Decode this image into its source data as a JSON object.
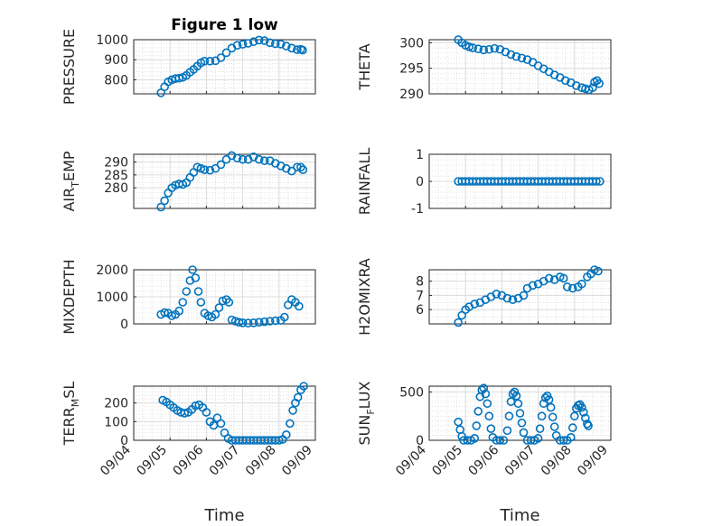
{
  "chart_data": [
    {
      "type": "scatter",
      "title": "Figure 1 low",
      "ylabel": "PRESSURE",
      "xlim": [
        0,
        5
      ],
      "ylim": [
        730,
        1000
      ],
      "yticks": [
        800,
        900,
        1000
      ],
      "xtick_labels": [],
      "grid": true,
      "marker": "open-circle",
      "color": "#0072BD",
      "points": [
        [
          0.75,
          735
        ],
        [
          0.85,
          765
        ],
        [
          0.95,
          790
        ],
        [
          1.05,
          800
        ],
        [
          1.15,
          806
        ],
        [
          1.25,
          808
        ],
        [
          1.35,
          812
        ],
        [
          1.45,
          822
        ],
        [
          1.55,
          838
        ],
        [
          1.65,
          852
        ],
        [
          1.75,
          868
        ],
        [
          1.85,
          885
        ],
        [
          1.95,
          893
        ],
        [
          2.1,
          893
        ],
        [
          2.25,
          895
        ],
        [
          2.4,
          910
        ],
        [
          2.55,
          935
        ],
        [
          2.7,
          958
        ],
        [
          2.85,
          972
        ],
        [
          3.0,
          977
        ],
        [
          3.15,
          982
        ],
        [
          3.3,
          990
        ],
        [
          3.45,
          998
        ],
        [
          3.6,
          995
        ],
        [
          3.75,
          985
        ],
        [
          3.9,
          980
        ],
        [
          4.05,
          978
        ],
        [
          4.2,
          968
        ],
        [
          4.35,
          958
        ],
        [
          4.5,
          950
        ],
        [
          4.6,
          952
        ],
        [
          4.65,
          948
        ]
      ]
    },
    {
      "type": "scatter",
      "title": "",
      "ylabel": "THETA",
      "xlim": [
        0,
        5
      ],
      "ylim": [
        290,
        300.6
      ],
      "yticks": [
        290,
        295,
        300
      ],
      "xtick_labels": [],
      "grid": true,
      "marker": "open-circle",
      "color": "#0072BD",
      "points": [
        [
          0.8,
          300.6
        ],
        [
          0.9,
          300.0
        ],
        [
          1.0,
          299.5
        ],
        [
          1.1,
          299.2
        ],
        [
          1.2,
          299.0
        ],
        [
          1.35,
          298.8
        ],
        [
          1.5,
          298.6
        ],
        [
          1.65,
          298.7
        ],
        [
          1.8,
          298.9
        ],
        [
          1.95,
          298.7
        ],
        [
          2.1,
          298.2
        ],
        [
          2.25,
          297.7
        ],
        [
          2.4,
          297.3
        ],
        [
          2.55,
          297.0
        ],
        [
          2.7,
          296.7
        ],
        [
          2.85,
          296.2
        ],
        [
          3.0,
          295.5
        ],
        [
          3.15,
          294.9
        ],
        [
          3.3,
          294.3
        ],
        [
          3.45,
          293.7
        ],
        [
          3.6,
          293.2
        ],
        [
          3.75,
          292.6
        ],
        [
          3.9,
          292.2
        ],
        [
          4.05,
          291.6
        ],
        [
          4.2,
          291.2
        ],
        [
          4.3,
          291.0
        ],
        [
          4.4,
          290.8
        ],
        [
          4.5,
          291.2
        ],
        [
          4.55,
          292.3
        ],
        [
          4.62,
          292.6
        ],
        [
          4.68,
          292.0
        ]
      ]
    },
    {
      "type": "scatter",
      "title": "",
      "ylabel": "AIR",
      "ylabel_sub": "T",
      "ylabel_tail": "EMP",
      "xlim": [
        0,
        5
      ],
      "ylim": [
        272,
        293
      ],
      "yticks": [
        280,
        285,
        290
      ],
      "xtick_labels": [],
      "grid": true,
      "marker": "open-circle",
      "color": "#0072BD",
      "points": [
        [
          0.75,
          272.5
        ],
        [
          0.85,
          275
        ],
        [
          0.95,
          278
        ],
        [
          1.05,
          280
        ],
        [
          1.15,
          281
        ],
        [
          1.25,
          281.5
        ],
        [
          1.35,
          281.3
        ],
        [
          1.45,
          282
        ],
        [
          1.55,
          284
        ],
        [
          1.65,
          286
        ],
        [
          1.75,
          288
        ],
        [
          1.85,
          287.5
        ],
        [
          1.95,
          287
        ],
        [
          2.1,
          286.8
        ],
        [
          2.25,
          287.5
        ],
        [
          2.4,
          289
        ],
        [
          2.55,
          291
        ],
        [
          2.7,
          292.5
        ],
        [
          2.85,
          291.5
        ],
        [
          3.0,
          291
        ],
        [
          3.15,
          291
        ],
        [
          3.3,
          292
        ],
        [
          3.45,
          291
        ],
        [
          3.6,
          290.5
        ],
        [
          3.75,
          290.5
        ],
        [
          3.9,
          289.5
        ],
        [
          4.05,
          288.5
        ],
        [
          4.2,
          287.5
        ],
        [
          4.35,
          286.5
        ],
        [
          4.5,
          288
        ],
        [
          4.6,
          288
        ],
        [
          4.66,
          287
        ]
      ]
    },
    {
      "type": "scatter",
      "title": "",
      "ylabel": "RAINFALL",
      "xlim": [
        0,
        5
      ],
      "ylim": [
        -1,
        1
      ],
      "yticks": [
        -1,
        0,
        1
      ],
      "xtick_labels": [],
      "grid": true,
      "marker": "open-circle",
      "color": "#0072BD",
      "points": [
        [
          0.8,
          0
        ],
        [
          0.9,
          0
        ],
        [
          1.0,
          0
        ],
        [
          1.1,
          0
        ],
        [
          1.2,
          0
        ],
        [
          1.3,
          0
        ],
        [
          1.4,
          0
        ],
        [
          1.5,
          0
        ],
        [
          1.6,
          0
        ],
        [
          1.7,
          0
        ],
        [
          1.8,
          0
        ],
        [
          1.9,
          0
        ],
        [
          2.0,
          0
        ],
        [
          2.1,
          0
        ],
        [
          2.2,
          0
        ],
        [
          2.3,
          0
        ],
        [
          2.4,
          0
        ],
        [
          2.5,
          0
        ],
        [
          2.6,
          0
        ],
        [
          2.7,
          0
        ],
        [
          2.8,
          0
        ],
        [
          2.9,
          0
        ],
        [
          3.0,
          0
        ],
        [
          3.1,
          0
        ],
        [
          3.2,
          0
        ],
        [
          3.3,
          0
        ],
        [
          3.4,
          0
        ],
        [
          3.5,
          0
        ],
        [
          3.6,
          0
        ],
        [
          3.7,
          0
        ],
        [
          3.8,
          0
        ],
        [
          3.9,
          0
        ],
        [
          4.0,
          0
        ],
        [
          4.1,
          0
        ],
        [
          4.2,
          0
        ],
        [
          4.3,
          0
        ],
        [
          4.4,
          0
        ],
        [
          4.5,
          0
        ],
        [
          4.6,
          0
        ],
        [
          4.7,
          0
        ]
      ]
    },
    {
      "type": "scatter",
      "title": "",
      "ylabel": "MIXDEPTH",
      "xlim": [
        0,
        5
      ],
      "ylim": [
        0,
        2000
      ],
      "yticks": [
        0,
        1000,
        2000
      ],
      "xtick_labels": [],
      "grid": true,
      "marker": "open-circle",
      "color": "#0072BD",
      "points": [
        [
          0.75,
          350
        ],
        [
          0.85,
          420
        ],
        [
          0.95,
          400
        ],
        [
          1.05,
          300
        ],
        [
          1.15,
          350
        ],
        [
          1.25,
          480
        ],
        [
          1.35,
          800
        ],
        [
          1.45,
          1200
        ],
        [
          1.55,
          1600
        ],
        [
          1.62,
          2000
        ],
        [
          1.7,
          1700
        ],
        [
          1.78,
          1200
        ],
        [
          1.85,
          800
        ],
        [
          1.95,
          400
        ],
        [
          2.05,
          300
        ],
        [
          2.15,
          250
        ],
        [
          2.25,
          350
        ],
        [
          2.35,
          600
        ],
        [
          2.45,
          850
        ],
        [
          2.55,
          900
        ],
        [
          2.62,
          800
        ],
        [
          2.7,
          150
        ],
        [
          2.8,
          100
        ],
        [
          2.9,
          60
        ],
        [
          3.0,
          40
        ],
        [
          3.15,
          30
        ],
        [
          3.3,
          40
        ],
        [
          3.45,
          60
        ],
        [
          3.6,
          80
        ],
        [
          3.75,
          100
        ],
        [
          3.9,
          120
        ],
        [
          4.05,
          130
        ],
        [
          4.15,
          250
        ],
        [
          4.25,
          700
        ],
        [
          4.35,
          900
        ],
        [
          4.45,
          800
        ],
        [
          4.55,
          650
        ]
      ]
    },
    {
      "type": "scatter",
      "title": "",
      "ylabel": "H2OMIXRA",
      "xlim": [
        0,
        5
      ],
      "ylim": [
        5,
        8.8
      ],
      "yticks": [
        6,
        7,
        8
      ],
      "xtick_labels": [],
      "grid": true,
      "marker": "open-circle",
      "color": "#0072BD",
      "points": [
        [
          0.8,
          5.1
        ],
        [
          0.9,
          5.6
        ],
        [
          1.0,
          6.0
        ],
        [
          1.1,
          6.2
        ],
        [
          1.25,
          6.4
        ],
        [
          1.4,
          6.5
        ],
        [
          1.55,
          6.7
        ],
        [
          1.7,
          6.9
        ],
        [
          1.85,
          7.1
        ],
        [
          2.0,
          7.0
        ],
        [
          2.15,
          6.8
        ],
        [
          2.3,
          6.7
        ],
        [
          2.45,
          6.8
        ],
        [
          2.6,
          7.0
        ],
        [
          2.7,
          7.5
        ],
        [
          2.85,
          7.7
        ],
        [
          3.0,
          7.8
        ],
        [
          3.15,
          8.0
        ],
        [
          3.3,
          8.2
        ],
        [
          3.45,
          8.1
        ],
        [
          3.6,
          8.3
        ],
        [
          3.7,
          8.2
        ],
        [
          3.8,
          7.6
        ],
        [
          3.95,
          7.5
        ],
        [
          4.1,
          7.6
        ],
        [
          4.2,
          7.8
        ],
        [
          4.35,
          8.3
        ],
        [
          4.45,
          8.5
        ],
        [
          4.55,
          8.8
        ],
        [
          4.65,
          8.7
        ]
      ]
    },
    {
      "type": "scatter",
      "title": "",
      "ylabel": "TERR",
      "ylabel_sub": "M",
      "ylabel_tail": "SL",
      "xlim": [
        0,
        5
      ],
      "ylim": [
        0,
        290
      ],
      "yticks": [
        0,
        100,
        200
      ],
      "xtick_labels": [
        "09/04",
        "09/05",
        "09/06",
        "09/07",
        "09/08",
        "09/09"
      ],
      "xlabel": "Time",
      "grid": true,
      "marker": "open-circle",
      "color": "#0072BD",
      "points": [
        [
          0.8,
          215
        ],
        [
          0.9,
          205
        ],
        [
          1.0,
          190
        ],
        [
          1.1,
          175
        ],
        [
          1.2,
          160
        ],
        [
          1.3,
          150
        ],
        [
          1.4,
          145
        ],
        [
          1.5,
          150
        ],
        [
          1.6,
          165
        ],
        [
          1.7,
          185
        ],
        [
          1.8,
          190
        ],
        [
          1.9,
          175
        ],
        [
          2.0,
          150
        ],
        [
          2.1,
          100
        ],
        [
          2.2,
          80
        ],
        [
          2.3,
          120
        ],
        [
          2.4,
          90
        ],
        [
          2.5,
          40
        ],
        [
          2.6,
          10
        ],
        [
          2.7,
          0
        ],
        [
          2.8,
          0
        ],
        [
          2.9,
          0
        ],
        [
          3.0,
          0
        ],
        [
          3.1,
          0
        ],
        [
          3.2,
          0
        ],
        [
          3.3,
          0
        ],
        [
          3.4,
          0
        ],
        [
          3.5,
          0
        ],
        [
          3.6,
          0
        ],
        [
          3.7,
          0
        ],
        [
          3.8,
          0
        ],
        [
          3.9,
          0
        ],
        [
          4.0,
          0
        ],
        [
          4.1,
          5
        ],
        [
          4.2,
          30
        ],
        [
          4.3,
          90
        ],
        [
          4.38,
          160
        ],
        [
          4.45,
          200
        ],
        [
          4.52,
          230
        ],
        [
          4.6,
          270
        ],
        [
          4.68,
          290
        ]
      ]
    },
    {
      "type": "scatter",
      "title": "",
      "ylabel": "SUN",
      "ylabel_sub": "F",
      "ylabel_tail": "LUX",
      "xlim": [
        0,
        5
      ],
      "ylim": [
        0,
        560
      ],
      "yticks": [
        0,
        500
      ],
      "xtick_labels": [
        "09/04",
        "09/05",
        "09/06",
        "09/07",
        "09/08",
        "09/09"
      ],
      "xlabel": "Time",
      "grid": true,
      "marker": "open-circle",
      "color": "#0072BD",
      "points": [
        [
          0.8,
          190
        ],
        [
          0.85,
          110
        ],
        [
          0.9,
          40
        ],
        [
          0.95,
          0
        ],
        [
          1.05,
          0
        ],
        [
          1.15,
          0
        ],
        [
          1.25,
          20
        ],
        [
          1.3,
          150
        ],
        [
          1.35,
          300
        ],
        [
          1.4,
          450
        ],
        [
          1.45,
          520
        ],
        [
          1.5,
          540
        ],
        [
          1.55,
          480
        ],
        [
          1.6,
          380
        ],
        [
          1.65,
          250
        ],
        [
          1.7,
          120
        ],
        [
          1.75,
          30
        ],
        [
          1.85,
          0
        ],
        [
          1.95,
          0
        ],
        [
          2.05,
          0
        ],
        [
          2.15,
          100
        ],
        [
          2.2,
          250
        ],
        [
          2.25,
          400
        ],
        [
          2.3,
          480
        ],
        [
          2.35,
          500
        ],
        [
          2.4,
          460
        ],
        [
          2.45,
          380
        ],
        [
          2.5,
          280
        ],
        [
          2.55,
          180
        ],
        [
          2.6,
          80
        ],
        [
          2.7,
          0
        ],
        [
          2.8,
          0
        ],
        [
          2.9,
          0
        ],
        [
          3.0,
          20
        ],
        [
          3.05,
          120
        ],
        [
          3.1,
          250
        ],
        [
          3.15,
          380
        ],
        [
          3.2,
          440
        ],
        [
          3.25,
          460
        ],
        [
          3.3,
          420
        ],
        [
          3.35,
          340
        ],
        [
          3.4,
          240
        ],
        [
          3.45,
          140
        ],
        [
          3.5,
          50
        ],
        [
          3.6,
          0
        ],
        [
          3.7,
          0
        ],
        [
          3.8,
          0
        ],
        [
          3.9,
          30
        ],
        [
          3.95,
          130
        ],
        [
          4.0,
          250
        ],
        [
          4.05,
          330
        ],
        [
          4.1,
          360
        ],
        [
          4.15,
          370
        ],
        [
          4.2,
          340
        ],
        [
          4.25,
          290
        ],
        [
          4.3,
          230
        ],
        [
          4.35,
          170
        ],
        [
          4.38,
          150
        ]
      ]
    }
  ]
}
